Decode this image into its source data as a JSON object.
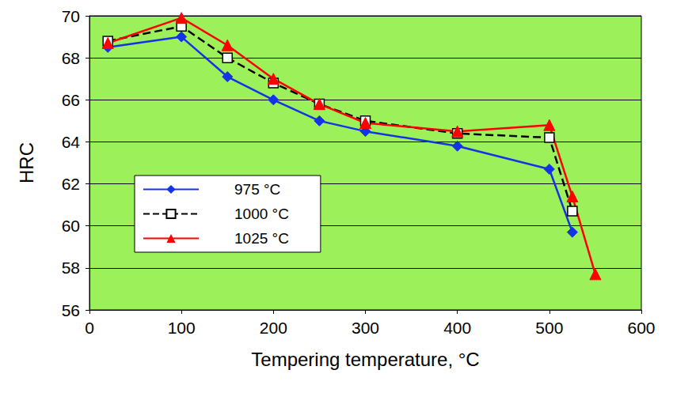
{
  "chart_data": {
    "type": "line",
    "x_label": "Tempering temperature, °C",
    "y_label": "HRC",
    "xlim": [
      0,
      600
    ],
    "xticks": [
      0,
      100,
      200,
      300,
      400,
      500,
      600
    ],
    "ylim": [
      56,
      70
    ],
    "yticks": [
      56,
      58,
      60,
      62,
      64,
      66,
      68,
      70
    ],
    "grid": true,
    "legend": "left",
    "series": [
      {
        "name": "975 °C",
        "color": "#1432e6",
        "marker": "diamond",
        "line_style": "solid",
        "x": [
          20,
          100,
          150,
          200,
          250,
          300,
          400,
          500,
          525
        ],
        "values": [
          68.5,
          69.0,
          67.1,
          66.0,
          65.0,
          64.5,
          63.8,
          62.7,
          59.7
        ]
      },
      {
        "name": "1000 °C",
        "color": "#000000",
        "marker": "open_square",
        "line_style": "dashed",
        "x": [
          20,
          100,
          150,
          200,
          250,
          300,
          400,
          500,
          525
        ],
        "values": [
          68.8,
          69.5,
          68.0,
          66.8,
          65.8,
          65.0,
          64.4,
          64.2,
          60.7
        ]
      },
      {
        "name": "1025 °C",
        "color": "#ff0000",
        "marker": "triangle",
        "line_style": "solid",
        "x": [
          20,
          100,
          150,
          200,
          250,
          300,
          400,
          500,
          525,
          550
        ],
        "values": [
          68.7,
          69.9,
          68.6,
          67.0,
          65.8,
          64.9,
          64.5,
          64.8,
          61.4,
          57.7
        ]
      }
    ]
  }
}
